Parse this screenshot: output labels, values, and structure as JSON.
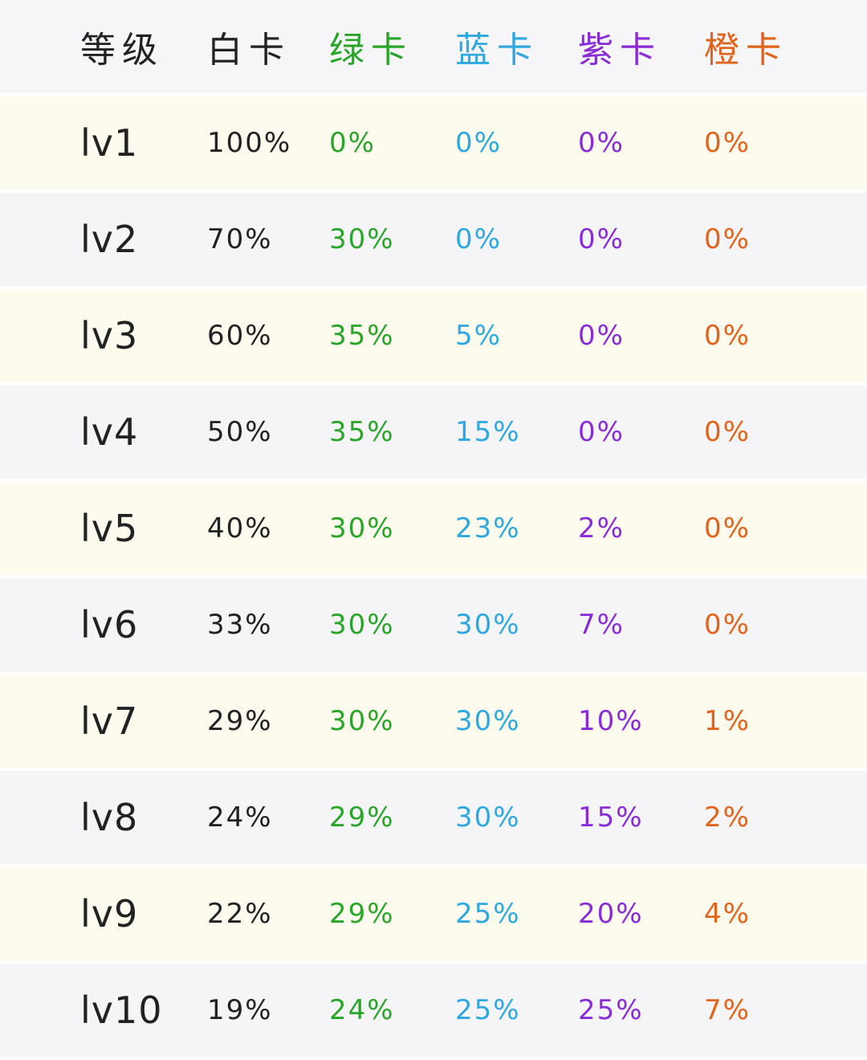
{
  "colors": {
    "level": "#222222",
    "white": "#222222",
    "green": "#2aa52a",
    "blue": "#2ea8df",
    "purple": "#8a2cd6",
    "orange": "#e0641c",
    "header_bg": "#f6f6f8",
    "row_odd_bg": "#fdfaee",
    "row_even_bg": "#f5f5f7"
  },
  "headers": [
    "等级",
    "白卡",
    "绿卡",
    "蓝卡",
    "紫卡",
    "橙卡"
  ],
  "rows": [
    {
      "level": "lv1",
      "white": "100%",
      "green": "0%",
      "blue": "0%",
      "purple": "0%",
      "orange": "0%"
    },
    {
      "level": "lv2",
      "white": "70%",
      "green": "30%",
      "blue": "0%",
      "purple": "0%",
      "orange": "0%"
    },
    {
      "level": "lv3",
      "white": "60%",
      "green": "35%",
      "blue": "5%",
      "purple": "0%",
      "orange": "0%"
    },
    {
      "level": "lv4",
      "white": "50%",
      "green": "35%",
      "blue": "15%",
      "purple": "0%",
      "orange": "0%"
    },
    {
      "level": "lv5",
      "white": "40%",
      "green": "30%",
      "blue": "23%",
      "purple": "2%",
      "orange": "0%"
    },
    {
      "level": "lv6",
      "white": "33%",
      "green": "30%",
      "blue": "30%",
      "purple": "7%",
      "orange": "0%"
    },
    {
      "level": "lv7",
      "white": "29%",
      "green": "30%",
      "blue": "30%",
      "purple": "10%",
      "orange": "1%"
    },
    {
      "level": "lv8",
      "white": "24%",
      "green": "29%",
      "blue": "30%",
      "purple": "15%",
      "orange": "2%"
    },
    {
      "level": "lv9",
      "white": "22%",
      "green": "29%",
      "blue": "25%",
      "purple": "20%",
      "orange": "4%"
    },
    {
      "level": "lv10",
      "white": "19%",
      "green": "24%",
      "blue": "25%",
      "purple": "25%",
      "orange": "7%"
    }
  ]
}
